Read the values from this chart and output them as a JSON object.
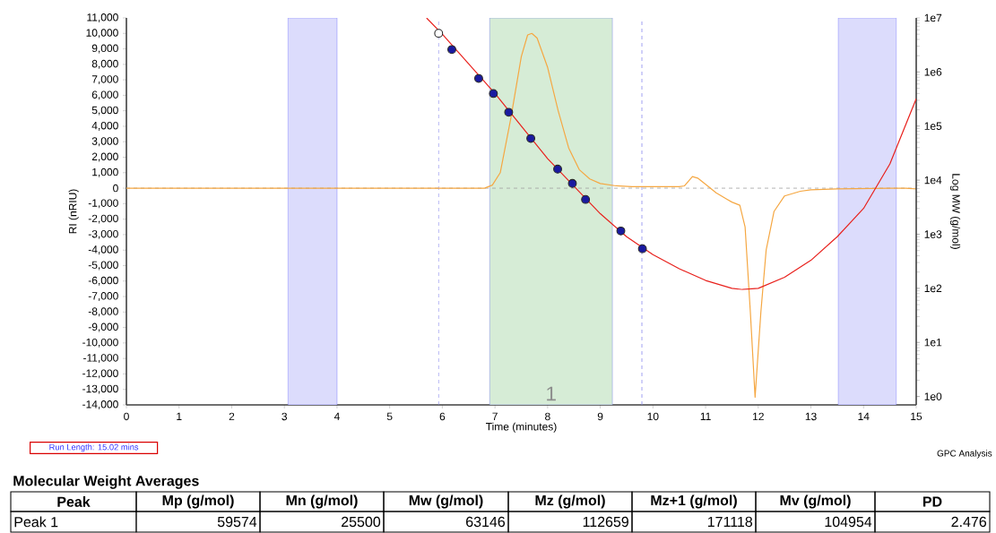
{
  "chart_data": {
    "type": "line",
    "xlabel": "Time (minutes)",
    "ylabel": "RI (nRIU)",
    "y2label": "Log MW (g/mol)",
    "xlim": [
      0,
      15
    ],
    "xticks": [
      0,
      1,
      2,
      3,
      4,
      5,
      6,
      7,
      8,
      9,
      10,
      11,
      12,
      13,
      14,
      15
    ],
    "ylim": [
      -14000,
      11000
    ],
    "yticks": [
      {
        "value": 11000,
        "label": "11,000"
      },
      {
        "value": 10000,
        "label": "10,000"
      },
      {
        "value": 9000,
        "label": "9,000"
      },
      {
        "value": 8000,
        "label": "8,000"
      },
      {
        "value": 7000,
        "label": "7,000"
      },
      {
        "value": 6000,
        "label": "6,000"
      },
      {
        "value": 5000,
        "label": "5,000"
      },
      {
        "value": 4000,
        "label": "4,000"
      },
      {
        "value": 3000,
        "label": "3,000"
      },
      {
        "value": 2000,
        "label": "2,000"
      },
      {
        "value": 1000,
        "label": "1,000"
      },
      {
        "value": 0,
        "label": "0"
      },
      {
        "value": -1000,
        "label": "-1,000"
      },
      {
        "value": -2000,
        "label": "-2,000"
      },
      {
        "value": -3000,
        "label": "-3,000"
      },
      {
        "value": -4000,
        "label": "-4,000"
      },
      {
        "value": -5000,
        "label": "-5,000"
      },
      {
        "value": -6000,
        "label": "-6,000"
      },
      {
        "value": -7000,
        "label": "-7,000"
      },
      {
        "value": -8000,
        "label": "-8,000"
      },
      {
        "value": -9000,
        "label": "-9,000"
      },
      {
        "value": -10000,
        "label": "-10,000"
      },
      {
        "value": -11000,
        "label": "-11,000"
      },
      {
        "value": -12000,
        "label": "-12,000"
      },
      {
        "value": -13000,
        "label": "-13,000"
      },
      {
        "value": -14000,
        "label": "-14,000"
      }
    ],
    "y2lim": [
      0.7,
      10000000
    ],
    "y2ticks": [
      {
        "value": 1,
        "label": "1e0"
      },
      {
        "value": 10,
        "label": "1e1"
      },
      {
        "value": 100,
        "label": "1e2"
      },
      {
        "value": 1000,
        "label": "1e3"
      },
      {
        "value": 10000,
        "label": "1e4"
      },
      {
        "value": 100000,
        "label": "1e5"
      },
      {
        "value": 1000000,
        "label": "1e6"
      },
      {
        "value": 10000000,
        "label": "1e7"
      }
    ],
    "log": "y2",
    "grid": false,
    "legend": false,
    "line_style": "solid",
    "series": [
      {
        "color": "#f5a742",
        "marker": "none",
        "x": [
          0,
          1.8,
          6.8,
          6.95,
          7.1,
          7.3,
          7.5,
          7.62,
          7.7,
          7.8,
          8.0,
          8.2,
          8.4,
          8.6,
          8.8,
          9.0,
          9.3,
          9.6,
          10.0,
          10.5,
          10.6,
          10.75,
          10.85,
          11.0,
          11.2,
          11.4,
          11.5,
          11.65,
          11.75,
          11.85,
          11.94,
          12.05,
          12.15,
          12.3,
          12.5,
          12.8,
          13.0,
          13.5,
          14.5,
          14.8,
          15
        ],
        "values": [
          0,
          0,
          0,
          200,
          1000,
          4500,
          8500,
          9900,
          10000,
          9700,
          7800,
          5000,
          2600,
          1200,
          600,
          300,
          150,
          100,
          100,
          100,
          150,
          750,
          650,
          250,
          -300,
          -700,
          -900,
          -1100,
          -2500,
          -8000,
          -13500,
          -8000,
          -4000,
          -1500,
          -500,
          -200,
          -100,
          -50,
          0,
          0,
          -50
        ]
      },
      {
        "type": "line",
        "axis": "y2",
        "color": "#e8201c",
        "marker": "none",
        "x": [
          5.7,
          6.0,
          7.0,
          8.0,
          9.0,
          9.5,
          10.0,
          10.5,
          11.0,
          11.5,
          11.7,
          12.0,
          12.5,
          13.0,
          13.5,
          14.0,
          14.5,
          15
        ],
        "values": [
          10000000,
          5000000,
          400000,
          25000,
          2400,
          900,
          420,
          230,
          140,
          100,
          95,
          100,
          160,
          330,
          900,
          3000,
          20000,
          320000
        ]
      },
      {
        "type": "scatter",
        "axis": "y2",
        "color": "#ffffff",
        "marker": "circle",
        "x": [
          5.93
        ],
        "values": [
          5200000
        ]
      },
      {
        "type": "scatter",
        "axis": "y2",
        "color": "#1a1aa0",
        "marker": "circle",
        "x": [
          6.18,
          6.69,
          6.97,
          7.26,
          7.68,
          8.19,
          8.47,
          8.72,
          9.39,
          9.8
        ],
        "values": [
          2600000,
          760000,
          400000,
          180000,
          59000,
          16000,
          8700,
          4400,
          1150,
          540
        ]
      }
    ],
    "bands": [
      {
        "axis": "x",
        "from": 3.07,
        "to": 4.0,
        "color": "#dcdcfc"
      },
      {
        "axis": "x",
        "from": 6.9,
        "to": 9.23,
        "color": "#d6ecd6",
        "label": "1"
      },
      {
        "axis": "x",
        "from": 13.52,
        "to": 14.62,
        "color": "#dcdcfc"
      }
    ],
    "ref_lines": [
      {
        "axis": "x",
        "value": 5.93,
        "color": "#8888ee",
        "line_style": "dashed"
      },
      {
        "axis": "x",
        "value": 9.79,
        "color": "#8888ee",
        "line_style": "dashed"
      },
      {
        "axis": "y",
        "value": 0,
        "color": "#a0a0a0",
        "line_style": "dashed"
      }
    ],
    "annotations": [
      "Run Length: 15.02 mins",
      "GPC Analysis",
      "Molecular Weight Averages",
      "Peak",
      "Mp (g/mol)",
      "Mn (g/mol)",
      "Mw (g/mol)",
      "Mz (g/mol)",
      "Mz+1 (g/mol)",
      "Mv (g/mol)",
      "PD",
      "Peak 1",
      "59574",
      "25500",
      "63146",
      "112659",
      "171118",
      "104954",
      "2.476"
    ]
  }
}
